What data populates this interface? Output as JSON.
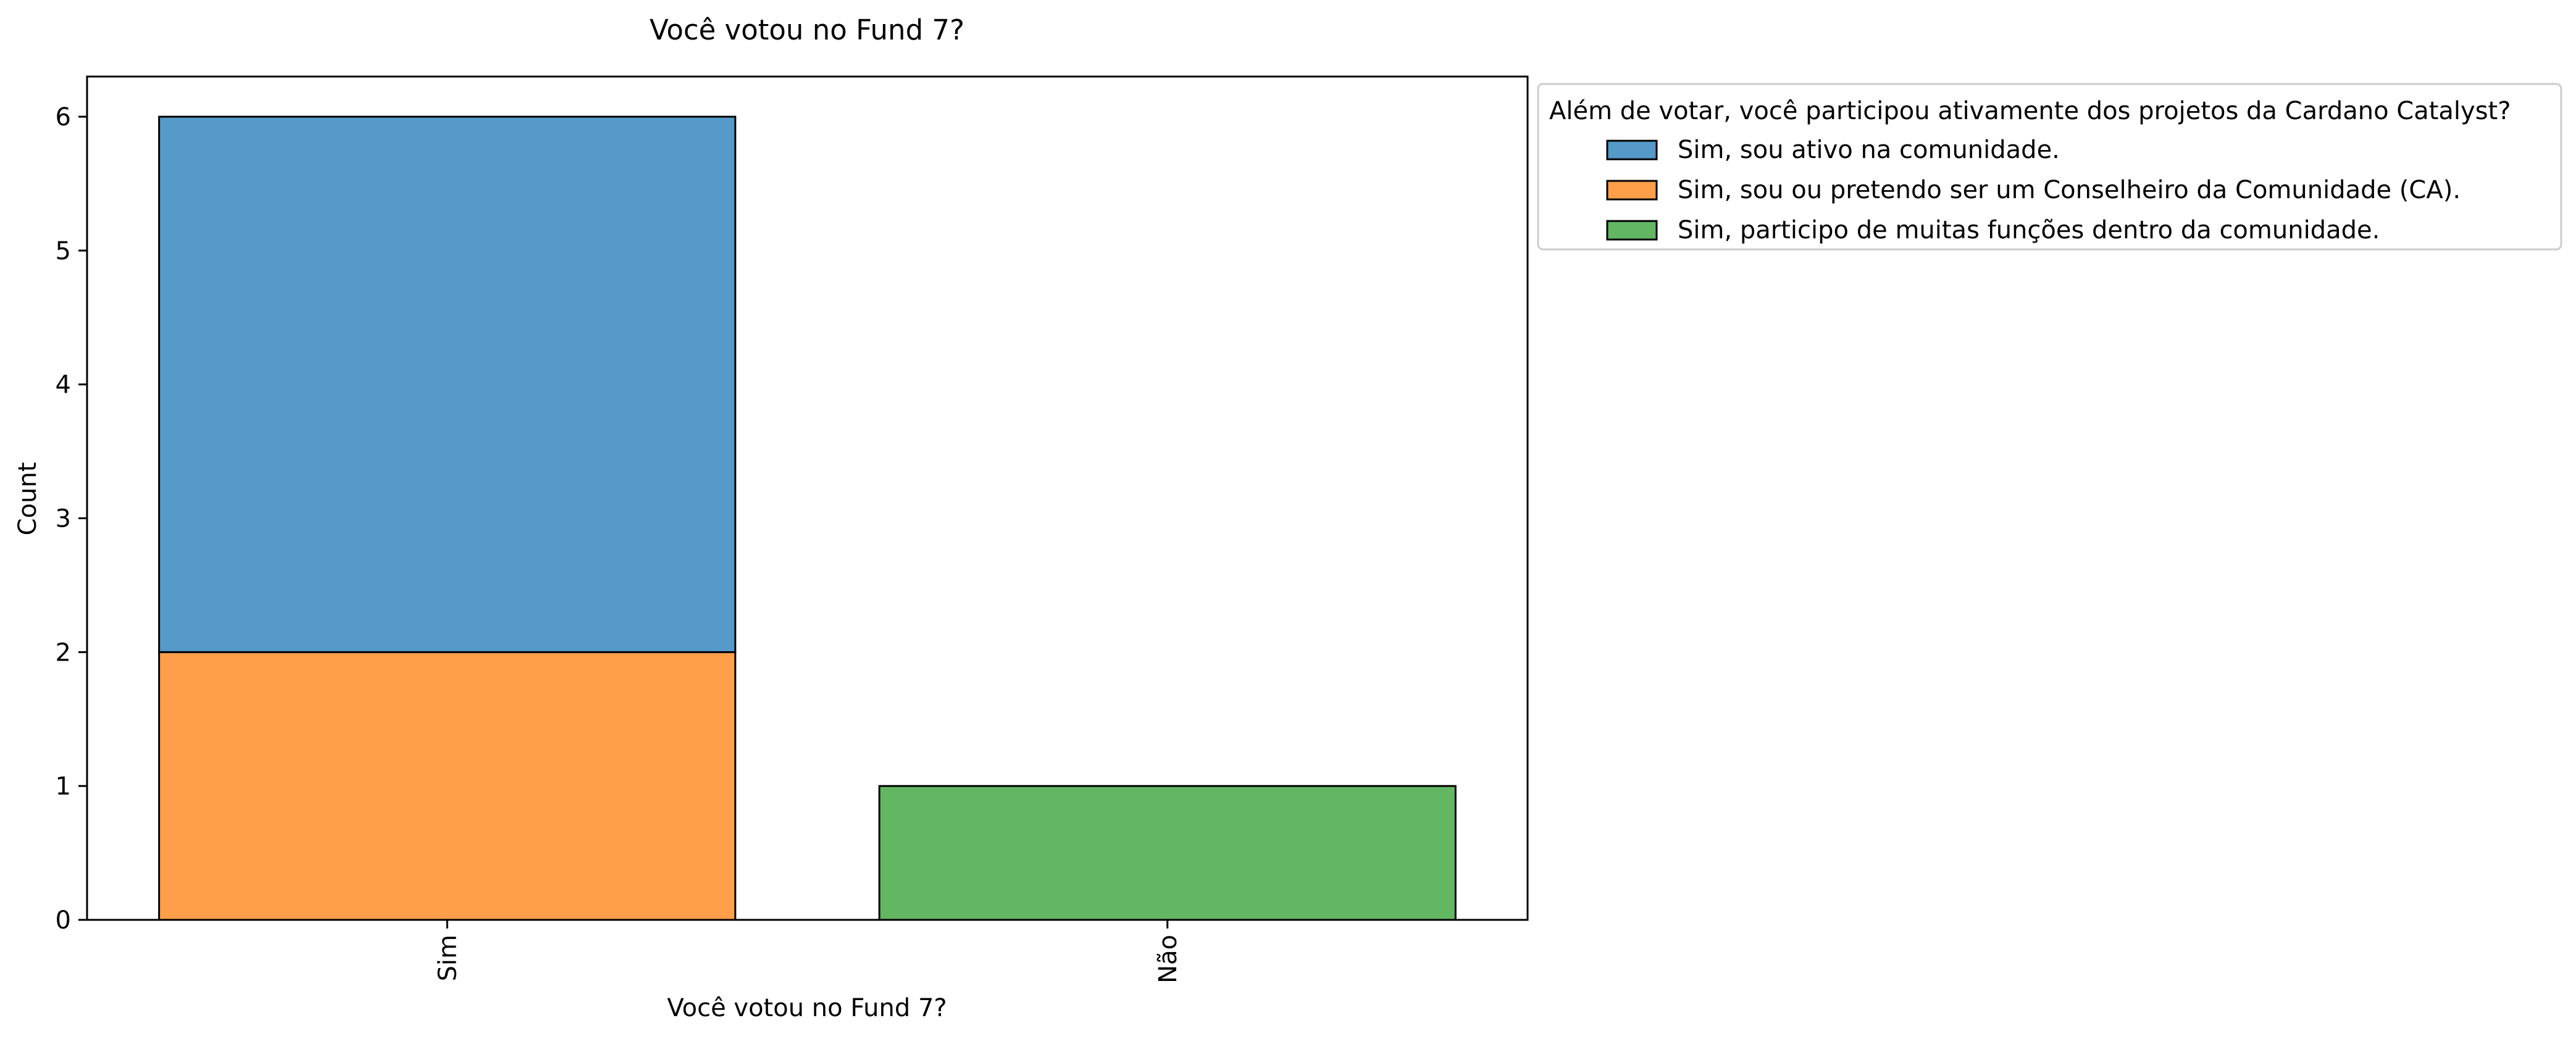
{
  "chart_data": {
    "type": "bar",
    "stacked": true,
    "title": "Você votou no Fund 7?",
    "xlabel": "Você votou no Fund 7?",
    "ylabel": "Count",
    "categories": [
      "Sim",
      "Não"
    ],
    "yticks": [
      "0",
      "1",
      "2",
      "3",
      "4",
      "5",
      "6"
    ],
    "ylim": [
      0,
      6.3
    ],
    "grid": false,
    "legend": {
      "title": "Além de votar, você participou ativamente dos projetos da Cardano Catalyst?",
      "placement": "outside-top-right"
    },
    "series": [
      {
        "name": "Sim, sou ou pretendo ser um Conselheiro da Comunidade (CA).",
        "color": "#ff9f4a",
        "values": [
          2,
          0
        ]
      },
      {
        "name": "Sim, sou ativo na comunidade.",
        "color": "#559ac8",
        "values": [
          4,
          0
        ]
      },
      {
        "name": "Sim, participo de muitas funções dentro da comunidade.",
        "color": "#63b763",
        "values": [
          0,
          1
        ]
      }
    ],
    "legend_order": [
      1,
      0,
      2
    ]
  }
}
